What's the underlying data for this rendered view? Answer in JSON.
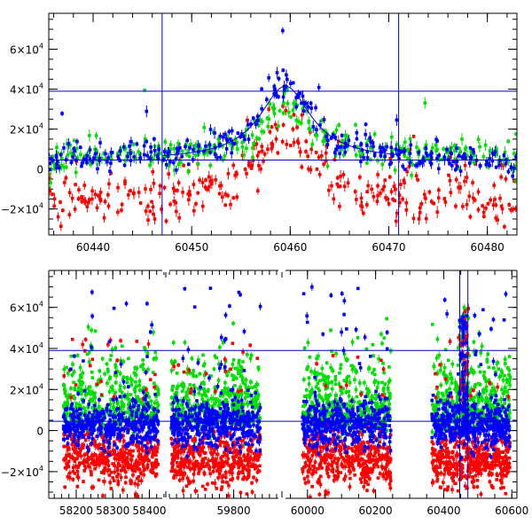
{
  "chart_data": [
    {
      "id": "top",
      "type": "scatter",
      "title": "",
      "xlabel": "",
      "ylabel": "",
      "xlim": [
        60435.5,
        60483
      ],
      "ylim": [
        -33000,
        78000
      ],
      "xticks": [
        {
          "v": 60440,
          "label": "60440"
        },
        {
          "v": 60450,
          "label": "60450"
        },
        {
          "v": 60460,
          "label": "60460"
        },
        {
          "v": 60470,
          "label": "60470"
        },
        {
          "v": 60480,
          "label": "60480"
        }
      ],
      "yticks": [
        {
          "v": -20000,
          "mant": "−2×10",
          "exp": "4"
        },
        {
          "v": 0,
          "mant": "0",
          "exp": ""
        },
        {
          "v": 20000,
          "mant": "2×10",
          "exp": "4"
        },
        {
          "v": 40000,
          "mant": "4×10",
          "exp": "4"
        },
        {
          "v": 60000,
          "mant": "6×10",
          "exp": "4"
        }
      ],
      "hlines": [
        39000,
        4500
      ],
      "vlines": [
        60447,
        60471
      ],
      "model_curve": {
        "baseline": 4500,
        "peak": 37000,
        "t0": 60459.5,
        "width": 3.2,
        "range": [
          60447,
          60471
        ]
      },
      "series": [
        {
          "color": "#ff0000",
          "offset": -14000,
          "spread": 7000,
          "scale": 0.92
        },
        {
          "color": "#00e000",
          "offset": 6000,
          "spread": 4000,
          "scale": 0.7
        },
        {
          "color": "#0000ff",
          "offset": 5000,
          "spread": 3500,
          "scale": 1.0
        }
      ]
    },
    {
      "id": "bottom",
      "type": "scatter",
      "title": "",
      "xlabel": "",
      "ylabel": "",
      "broken_x_axis": true,
      "segments": [
        {
          "xlim": [
            58125,
            58445
          ],
          "xticks": [
            {
              "v": 58200,
              "label": "58200"
            },
            {
              "v": 58300,
              "label": "58300"
            },
            {
              "v": 58400,
              "label": "58400"
            }
          ]
        },
        {
          "xlim": [
            59610,
            59935
          ],
          "xticks": [
            {
              "v": 59800,
              "label": "59800"
            }
          ]
        },
        {
          "xlim": [
            59925,
            60615
          ],
          "xticks": [
            {
              "v": 60000,
              "label": "60000"
            },
            {
              "v": 60200,
              "label": "60200"
            },
            {
              "v": 60400,
              "label": "60400"
            },
            {
              "v": 60600,
              "label": "60600"
            }
          ]
        }
      ],
      "ylim": [
        -33000,
        78000
      ],
      "yticks": [
        {
          "v": -20000,
          "mant": "−2×10",
          "exp": "4"
        },
        {
          "v": 0,
          "mant": "0",
          "exp": ""
        },
        {
          "v": 20000,
          "mant": "2×10",
          "exp": "4"
        },
        {
          "v": 40000,
          "mant": "4×10",
          "exp": "4"
        },
        {
          "v": 60000,
          "mant": "6×10",
          "exp": "4"
        }
      ],
      "hlines": [
        39000,
        4500
      ],
      "vlines": [
        60447,
        60471
      ],
      "seasons": [
        [
          58165,
          58425
        ],
        [
          59625,
          59875
        ],
        [
          59985,
          60245
        ],
        [
          60365,
          60595
        ]
      ],
      "event_peak": 60459,
      "series": [
        {
          "color": "#ff0000",
          "offset": -14000,
          "spread": 6500
        },
        {
          "color": "#00e000",
          "offset": 18000,
          "spread": 16000
        },
        {
          "color": "#0000ff",
          "offset": 3000,
          "spread": 5500
        }
      ]
    }
  ]
}
